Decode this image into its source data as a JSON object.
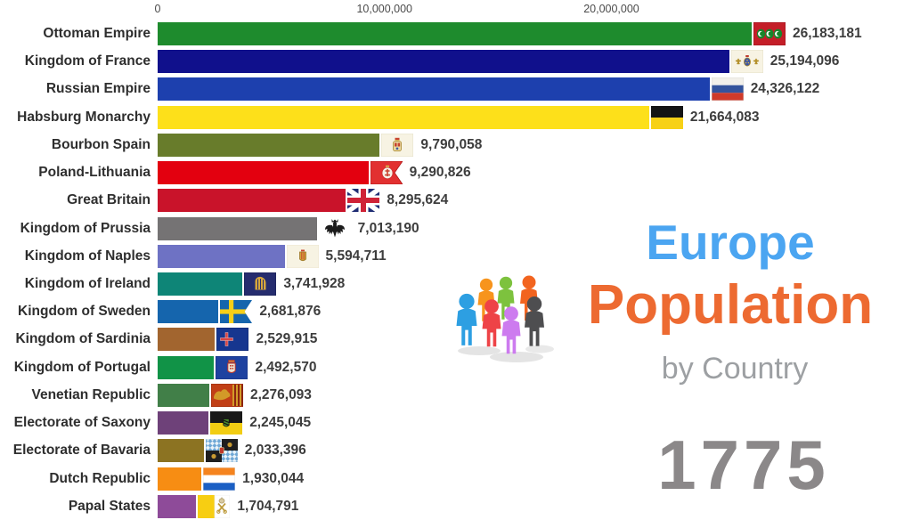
{
  "title": {
    "line1": "Europe",
    "line2": "Population",
    "line3": "by Country",
    "year": "1775",
    "line1_color": "#4ba5f1",
    "line2_color": "#ed6a31",
    "line3_color": "#9da0a3",
    "year_color": "#8b8889"
  },
  "logo_icon": {
    "name": "people-group-icon",
    "figure_colors": [
      "#f7941d",
      "#7dc23e",
      "#f2641f",
      "#2d9fe2",
      "#ee4347",
      "#4e4e50",
      "#cd7bef"
    ]
  },
  "chart_data": {
    "type": "bar",
    "orientation": "horizontal",
    "title": "Europe Population by Country",
    "year": "1775",
    "xlabel": "",
    "ylabel": "",
    "x_axis": {
      "scale_max": 26183181,
      "ticks": [
        {
          "label": "0",
          "value": 0
        },
        {
          "label": "10,000,000",
          "value": 10000000
        },
        {
          "label": "20,000,000",
          "value": 20000000
        }
      ]
    },
    "rows": [
      {
        "label": "Ottoman Empire",
        "value": 26183181,
        "display": "26,183,181",
        "color": "#1e8b2d",
        "flag": "ottoman-empire"
      },
      {
        "label": "Kingdom of France",
        "value": 25194096,
        "display": "25,194,096",
        "color": "#10108c",
        "flag": "kingdom-of-france"
      },
      {
        "label": "Russian Empire",
        "value": 24326122,
        "display": "24,326,122",
        "color": "#1d40ae",
        "flag": "russian-empire"
      },
      {
        "label": "Habsburg Monarchy",
        "value": 21664083,
        "display": "21,664,083",
        "color": "#fde01a",
        "flag": "habsburg-monarchy"
      },
      {
        "label": "Bourbon Spain",
        "value": 9790058,
        "display": "9,790,058",
        "color": "#687c2b",
        "flag": "bourbon-spain"
      },
      {
        "label": "Poland-Lithuania",
        "value": 9290826,
        "display": "9,290,826",
        "color": "#e3000f",
        "flag": "poland-lithuania"
      },
      {
        "label": "Great Britain",
        "value": 8295624,
        "display": "8,295,624",
        "color": "#c9132a",
        "flag": "great-britain"
      },
      {
        "label": "Kingdom of Prussia",
        "value": 7013190,
        "display": "7,013,190",
        "color": "#757374",
        "flag": "kingdom-of-prussia"
      },
      {
        "label": "Kingdom of Naples",
        "value": 5594711,
        "display": "5,594,711",
        "color": "#6e72c4",
        "flag": "kingdom-of-naples"
      },
      {
        "label": "Kingdom of Ireland",
        "value": 3741928,
        "display": "3,741,928",
        "color": "#0e8577",
        "flag": "kingdom-of-ireland"
      },
      {
        "label": "Kingdom of Sweden",
        "value": 2681876,
        "display": "2,681,876",
        "color": "#1565ad",
        "flag": "kingdom-of-sweden"
      },
      {
        "label": "Kingdom of Sardinia",
        "value": 2529915,
        "display": "2,529,915",
        "color": "#a2652f",
        "flag": "kingdom-of-sardinia"
      },
      {
        "label": "Kingdom of Portugal",
        "value": 2492570,
        "display": "2,492,570",
        "color": "#119347",
        "flag": "kingdom-of-portugal"
      },
      {
        "label": "Venetian Republic",
        "value": 2276093,
        "display": "2,276,093",
        "color": "#417f48",
        "flag": "venetian-republic"
      },
      {
        "label": "Electorate of Saxony",
        "value": 2245045,
        "display": "2,245,045",
        "color": "#6e4179",
        "flag": "electorate-of-saxony"
      },
      {
        "label": "Electorate of Bavaria",
        "value": 2033396,
        "display": "2,033,396",
        "color": "#8c7322",
        "flag": "electorate-of-bavaria"
      },
      {
        "label": "Dutch Republic",
        "value": 1930044,
        "display": "1,930,044",
        "color": "#f78d13",
        "flag": "dutch-republic"
      },
      {
        "label": "Papal States",
        "value": 1704791,
        "display": "1,704,791",
        "color": "#8e4b99",
        "flag": "papal-states"
      }
    ]
  }
}
